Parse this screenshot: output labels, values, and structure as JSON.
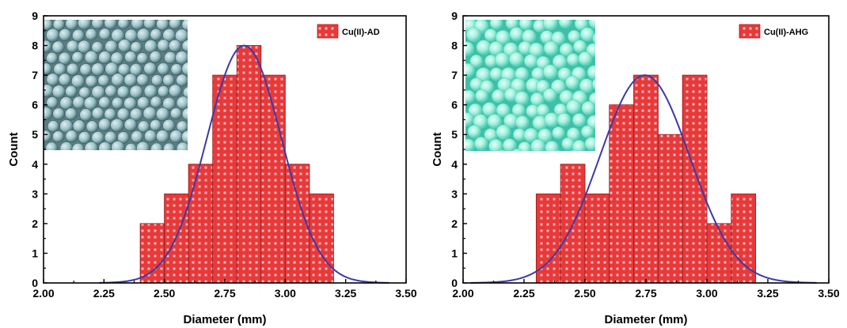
{
  "chart_data": [
    {
      "type": "bar",
      "subtype": "histogram-with-normal-fit",
      "legend": {
        "label": "Cu(II)-AD",
        "position": "top-right"
      },
      "xlabel": "Diameter (mm)",
      "ylabel": "Count",
      "xlim": [
        2.0,
        3.5
      ],
      "ylim": [
        0,
        9
      ],
      "xticks": [
        "2.00",
        "2.25",
        "2.50",
        "2.75",
        "3.00",
        "3.25",
        "3.50"
      ],
      "yticks": [
        "0",
        "1",
        "2",
        "3",
        "4",
        "5",
        "6",
        "7",
        "8",
        "9"
      ],
      "bin_width": 0.1,
      "bins": [
        {
          "start": 2.4,
          "count": 2
        },
        {
          "start": 2.5,
          "count": 3
        },
        {
          "start": 2.6,
          "count": 4
        },
        {
          "start": 2.7,
          "count": 7
        },
        {
          "start": 2.8,
          "count": 8
        },
        {
          "start": 2.9,
          "count": 7
        },
        {
          "start": 3.0,
          "count": 4
        },
        {
          "start": 3.1,
          "count": 3
        }
      ],
      "fit": {
        "mean": 2.83,
        "sd": 0.155,
        "peak": 8,
        "range": [
          2.23,
          3.43
        ],
        "color": "#3a3aa8"
      },
      "bar_color": "#e8393a",
      "inset_photo": "blue-spherical-beads-photo"
    },
    {
      "type": "bar",
      "subtype": "histogram-with-normal-fit",
      "legend": {
        "label": "Cu(II)-AHG",
        "position": "top-right"
      },
      "xlabel": "Diameter (mm)",
      "ylabel": "Count",
      "xlim": [
        2.0,
        3.5
      ],
      "ylim": [
        0,
        9
      ],
      "xticks": [
        "2.00",
        "2.25",
        "2.50",
        "2.75",
        "3.00",
        "3.25",
        "3.50"
      ],
      "yticks": [
        "0",
        "1",
        "2",
        "3",
        "4",
        "5",
        "6",
        "7",
        "8",
        "9"
      ],
      "bin_width": 0.1,
      "bins": [
        {
          "start": 2.3,
          "count": 3
        },
        {
          "start": 2.4,
          "count": 4
        },
        {
          "start": 2.5,
          "count": 3
        },
        {
          "start": 2.6,
          "count": 6
        },
        {
          "start": 2.7,
          "count": 7
        },
        {
          "start": 2.8,
          "count": 5
        },
        {
          "start": 2.9,
          "count": 7
        },
        {
          "start": 3.0,
          "count": 2
        },
        {
          "start": 3.1,
          "count": 3
        }
      ],
      "fit": {
        "mean": 2.745,
        "sd": 0.185,
        "peak": 7,
        "range": [
          2.03,
          3.45
        ],
        "color": "#3a3aa8"
      },
      "bar_color": "#e8393a",
      "inset_photo": "aqua-hydrogel-beads-photo"
    }
  ]
}
